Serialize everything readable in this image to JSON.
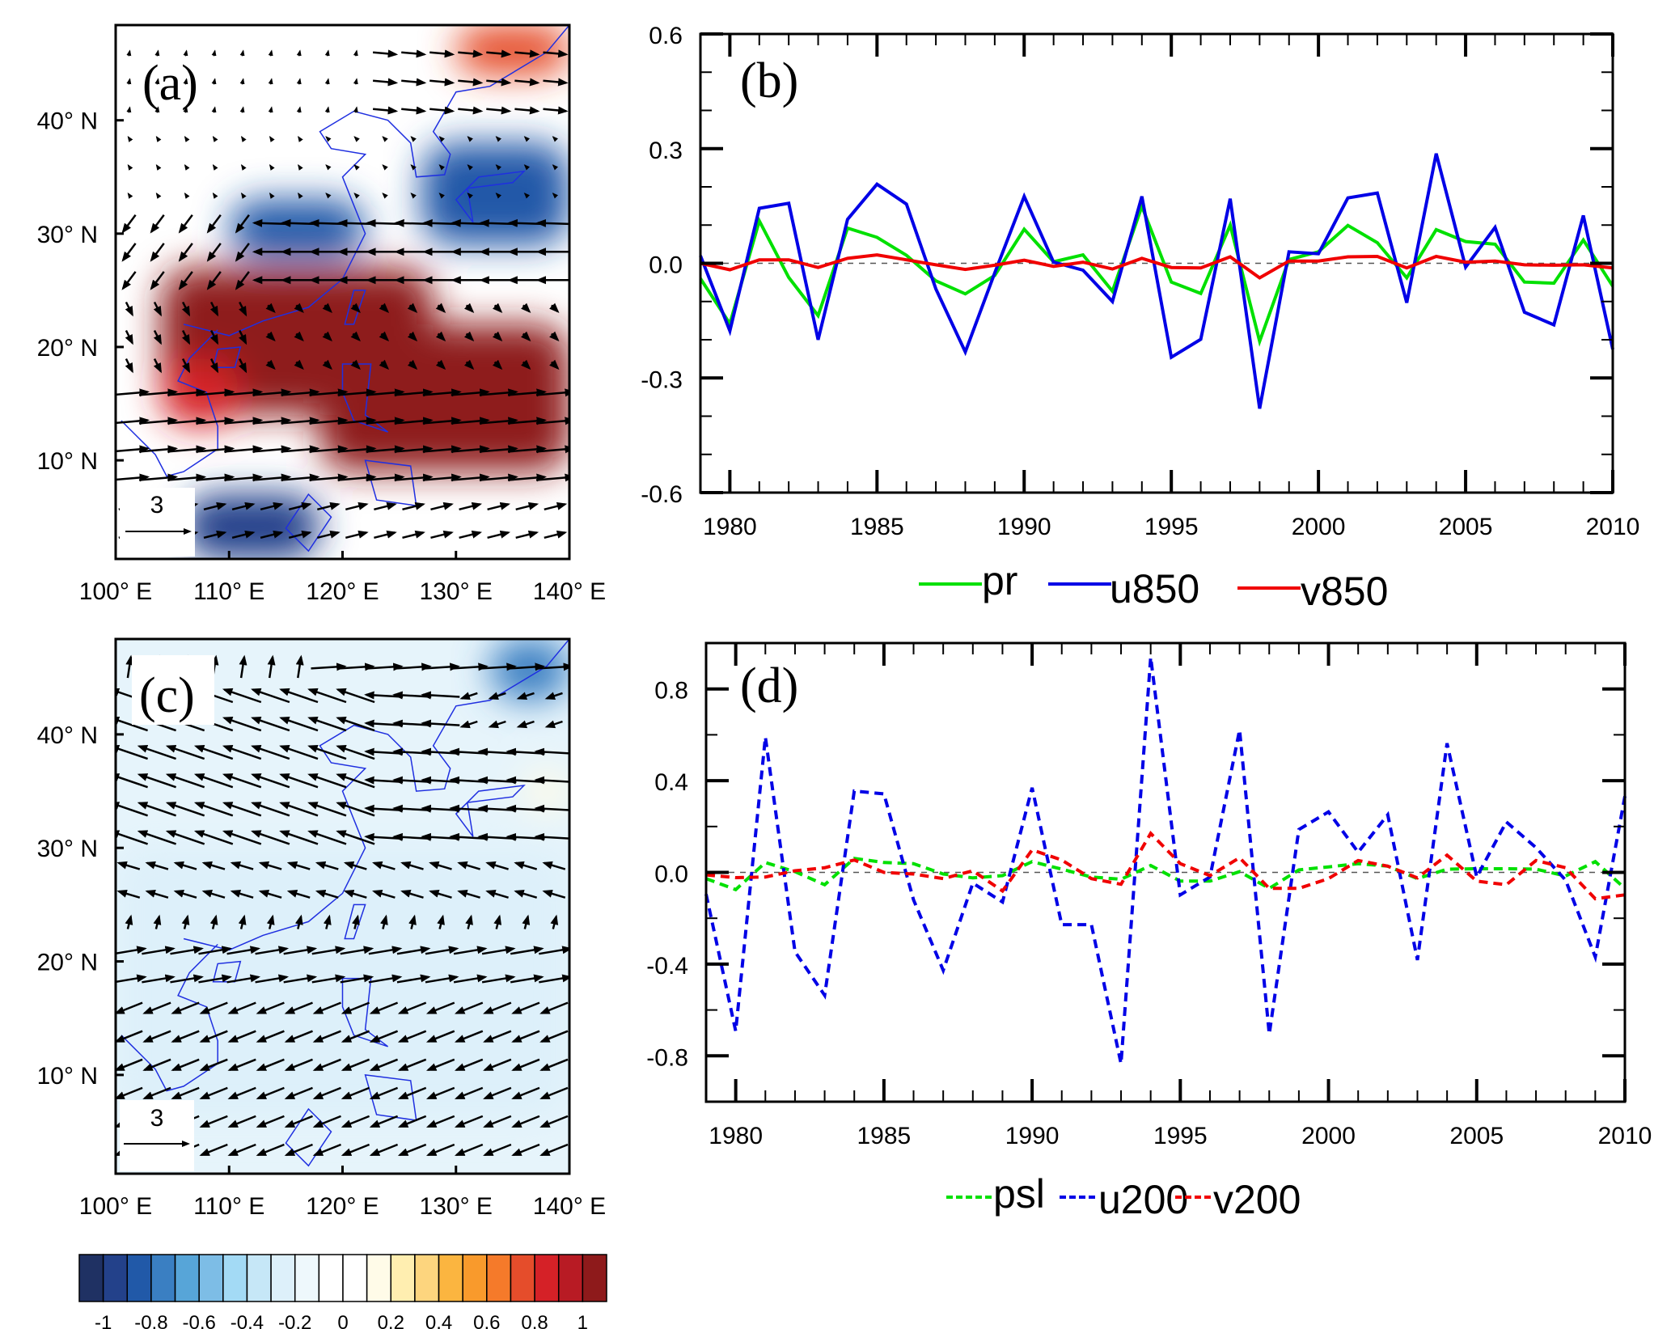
{
  "figure": {
    "panels": [
      "a",
      "b",
      "c",
      "d"
    ]
  },
  "chart_data": [
    {
      "id": "a",
      "type": "heatmap",
      "title": "(a)",
      "description": "Regression map of precipitation (shading) and 850 hPa wind (vectors)",
      "x_ticks": [
        "100° E",
        "110° E",
        "120° E",
        "130° E",
        "140° E"
      ],
      "x_tick_values": [
        100,
        110,
        120,
        130,
        140
      ],
      "y_ticks": [
        "40° N",
        "30° N",
        "20° N",
        "10° N"
      ],
      "y_tick_values": [
        40,
        30,
        20,
        10
      ],
      "xlim": [
        100,
        140
      ],
      "ylim": [
        1.3,
        48.4
      ],
      "reference_vector_label": "3",
      "field_regions": [
        {
          "lon": [
            104,
            128
          ],
          "lat": [
            14,
            27
          ],
          "value": 1.0
        },
        {
          "lon": [
            118,
            140
          ],
          "lat": [
            9,
            22
          ],
          "value": 1.0
        },
        {
          "lon": [
            104,
            111
          ],
          "lat": [
            13,
            19
          ],
          "value": 0.8
        },
        {
          "lon": [
            110,
            122
          ],
          "lat": [
            28,
            33
          ],
          "value": -0.9
        },
        {
          "lon": [
            127,
            140
          ],
          "lat": [
            29,
            38
          ],
          "value": -0.9
        },
        {
          "lon": [
            106,
            118
          ],
          "lat": [
            1.3,
            7
          ],
          "value": -1.0
        },
        {
          "lon": [
            130,
            140
          ],
          "lat": [
            44,
            48.4
          ],
          "value": 0.7
        }
      ],
      "vectors_description": "Strong westerlies 5-17°N, easterlies 24-31°N, cyclonic turning over South China Sea"
    },
    {
      "id": "b",
      "type": "line",
      "title": "(b)",
      "xlabel": "",
      "ylabel": "",
      "xlim": [
        1979,
        2010
      ],
      "ylim": [
        -0.6,
        0.6
      ],
      "x_ticks": [
        1980,
        1985,
        1990,
        1995,
        2000,
        2005,
        2010
      ],
      "x_tick_labels": [
        "1980",
        "1985",
        "1990",
        "1995",
        "2000",
        "2005",
        "2010"
      ],
      "y_ticks": [
        0.6,
        0.3,
        0.0,
        -0.3,
        -0.6
      ],
      "y_tick_labels": [
        "0.6",
        "0.3",
        "0.0",
        "-0.3",
        "-0.6"
      ],
      "grid": false,
      "zero_line": true,
      "legend_position": "bottom",
      "x": [
        1979,
        1980,
        1981,
        1982,
        1983,
        1984,
        1985,
        1986,
        1987,
        1988,
        1989,
        1990,
        1991,
        1992,
        1993,
        1994,
        1995,
        1996,
        1997,
        1998,
        1999,
        2000,
        2001,
        2002,
        2003,
        2004,
        2005,
        2006,
        2007,
        2008,
        2009,
        2010
      ],
      "series": [
        {
          "name": "pr",
          "color": "#00e000",
          "dash": "solid",
          "values": [
            -0.04,
            -0.158,
            0.111,
            -0.037,
            -0.137,
            0.092,
            0.068,
            0.021,
            -0.046,
            -0.08,
            -0.032,
            0.089,
            0.004,
            0.022,
            -0.073,
            0.149,
            -0.049,
            -0.079,
            0.1,
            -0.204,
            0.01,
            0.03,
            0.099,
            0.054,
            -0.038,
            0.088,
            0.057,
            0.05,
            -0.049,
            -0.052,
            0.061,
            -0.06
          ]
        },
        {
          "name": "u850",
          "color": "#0000e6",
          "dash": "solid",
          "values": [
            0.02,
            -0.177,
            0.144,
            0.157,
            -0.2,
            0.115,
            0.207,
            0.155,
            -0.067,
            -0.232,
            -0.025,
            0.175,
            0.003,
            -0.018,
            -0.1,
            0.175,
            -0.246,
            -0.199,
            0.169,
            -0.38,
            0.03,
            0.025,
            0.171,
            0.184,
            -0.103,
            0.287,
            -0.01,
            0.094,
            -0.128,
            -0.161,
            0.125,
            -0.225
          ]
        },
        {
          "name": "v850",
          "color": "#f00000",
          "dash": "solid",
          "values": [
            0.0,
            -0.017,
            0.009,
            0.009,
            -0.011,
            0.013,
            0.022,
            0.009,
            -0.004,
            -0.016,
            -0.005,
            0.008,
            -0.008,
            0.003,
            -0.015,
            0.013,
            -0.011,
            -0.012,
            0.017,
            -0.038,
            0.006,
            0.006,
            0.017,
            0.018,
            -0.012,
            0.018,
            0.003,
            0.006,
            -0.004,
            -0.005,
            -0.004,
            -0.012
          ]
        }
      ]
    },
    {
      "id": "c",
      "type": "heatmap",
      "title": "(c)",
      "description": "Regression map of sea level pressure (shading) and 200 hPa wind (vectors)",
      "x_ticks": [
        "100° E",
        "110° E",
        "120° E",
        "130° E",
        "140° E"
      ],
      "x_tick_values": [
        100,
        110,
        120,
        130,
        140
      ],
      "y_ticks": [
        "40° N",
        "30° N",
        "20° N",
        "10° N"
      ],
      "y_tick_values": [
        40,
        30,
        20,
        10
      ],
      "xlim": [
        100,
        140
      ],
      "ylim": [
        1.3,
        48.4
      ],
      "reference_vector_label": "3",
      "field_regions": [
        {
          "lon": [
            111,
            140
          ],
          "lat": [
            15,
            24
          ],
          "value": -1.0
        },
        {
          "lon": [
            104,
            140
          ],
          "lat": [
            12,
            27
          ],
          "value": -0.6
        },
        {
          "lon": [
            100,
            140
          ],
          "lat": [
            6,
            30
          ],
          "value": -0.3
        },
        {
          "lon": [
            133,
            140
          ],
          "lat": [
            43,
            48.4
          ],
          "value": -0.8
        },
        {
          "lon": [
            136,
            140
          ],
          "lat": [
            33,
            37
          ],
          "value": 0.1
        }
      ],
      "vectors_description": "Anticyclonic turning near 40°N, strong easterlies 30-40°N, westerlies 17-24°N, northeasterlies 3-13°N"
    },
    {
      "id": "d",
      "type": "line",
      "title": "(d)",
      "xlabel": "",
      "ylabel": "",
      "xlim": [
        1979,
        2010
      ],
      "ylim": [
        -1.0,
        1.0
      ],
      "x_ticks": [
        1980,
        1985,
        1990,
        1995,
        2000,
        2005,
        2010
      ],
      "x_tick_labels": [
        "1980",
        "1985",
        "1990",
        "1995",
        "2000",
        "2005",
        "2010"
      ],
      "y_ticks": [
        0.8,
        0.4,
        0.0,
        -0.4,
        -0.8
      ],
      "y_tick_labels": [
        "0.8",
        "0.4",
        "0.0",
        "-0.4",
        "-0.8"
      ],
      "grid": false,
      "zero_line": true,
      "legend_position": "bottom",
      "x": [
        1979,
        1980,
        1981,
        1982,
        1983,
        1984,
        1985,
        1986,
        1987,
        1988,
        1989,
        1990,
        1991,
        1992,
        1993,
        1994,
        1995,
        1996,
        1997,
        1998,
        1999,
        2000,
        2001,
        2002,
        2003,
        2004,
        2005,
        2006,
        2007,
        2008,
        2009,
        2010
      ],
      "series": [
        {
          "name": "psl",
          "color": "#00e000",
          "dash": "dashed",
          "values": [
            -0.027,
            -0.075,
            0.043,
            0.003,
            -0.054,
            0.061,
            0.043,
            0.038,
            -0.007,
            -0.024,
            -0.014,
            0.047,
            0.014,
            -0.02,
            -0.03,
            0.03,
            -0.038,
            -0.038,
            0.003,
            -0.07,
            0.011,
            0.024,
            0.038,
            0.027,
            -0.027,
            0.014,
            0.016,
            0.016,
            0.014,
            -0.016,
            0.047,
            -0.07
          ]
        },
        {
          "name": "u200",
          "color": "#0000e6",
          "dash": "dashed",
          "values": [
            -0.095,
            -0.692,
            0.59,
            -0.346,
            -0.536,
            0.355,
            0.342,
            -0.12,
            -0.427,
            -0.047,
            -0.129,
            0.369,
            -0.228,
            -0.228,
            -0.834,
            0.938,
            -0.098,
            -0.02,
            0.621,
            -0.705,
            0.187,
            0.264,
            0.088,
            0.251,
            -0.382,
            0.563,
            -0.02,
            0.22,
            0.108,
            -0.034,
            -0.369,
            0.332
          ]
        },
        {
          "name": "v200",
          "color": "#f00000",
          "dash": "dashed",
          "values": [
            -0.011,
            -0.023,
            -0.02,
            0.007,
            0.02,
            0.054,
            0.0,
            -0.007,
            -0.027,
            0.007,
            -0.081,
            0.098,
            0.054,
            -0.027,
            -0.052,
            0.17,
            0.038,
            -0.014,
            0.064,
            -0.07,
            -0.07,
            -0.027,
            0.052,
            0.027,
            -0.024,
            0.075,
            -0.038,
            -0.054,
            0.052,
            0.02,
            -0.115,
            -0.098
          ]
        }
      ]
    }
  ],
  "colorbar": {
    "labels": [
      "-1",
      "-0.8",
      "-0.6",
      "-0.4",
      "-0.2",
      "0",
      "0.2",
      "0.4",
      "0.6",
      "0.8",
      "1"
    ],
    "colors": [
      "#1f3163",
      "#23418a",
      "#2159a8",
      "#3a7fc2",
      "#57a5d8",
      "#7dbde6",
      "#a3daf5",
      "#c6e7f7",
      "#ddf0fa",
      "#eef8fc",
      "#ffffff",
      "#ffffff",
      "#fffbe8",
      "#ffeeb0",
      "#fdd57e",
      "#fbb540",
      "#f99a2c",
      "#f57a2a",
      "#e54d2b",
      "#d52127",
      "#b81b24",
      "#8e1a1b"
    ],
    "range": [
      -1.1,
      1.1
    ]
  }
}
